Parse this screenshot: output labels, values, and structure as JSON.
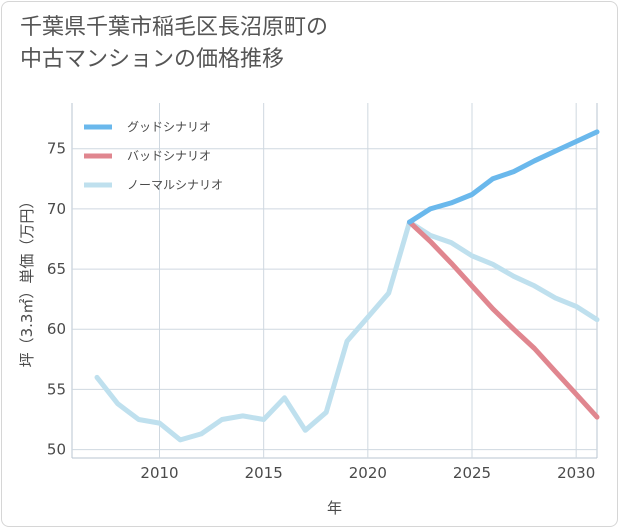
{
  "title_lines": [
    "千葉県千葉市稲毛区長沼原町の",
    "中古マンションの価格推移"
  ],
  "chart_data": {
    "type": "line",
    "xlabel": "年",
    "ylabel": "坪（3.3㎡）単価（万円）",
    "xlim": [
      2005.8,
      2031
    ],
    "ylim": [
      49.3,
      78.8
    ],
    "xticks": [
      2010,
      2015,
      2020,
      2025,
      2030
    ],
    "yticks": [
      50,
      55,
      60,
      65,
      70,
      75
    ],
    "grid": true,
    "legend_position": "top-left",
    "series": [
      {
        "name": "グッドシナリオ",
        "color": "#6ab8ec",
        "x": [
          2022,
          2023,
          2024,
          2025,
          2026,
          2027,
          2028,
          2029,
          2030,
          2031
        ],
        "y": [
          68.9,
          70.0,
          70.5,
          71.2,
          72.5,
          73.1,
          74.0,
          74.8,
          75.6,
          76.4
        ]
      },
      {
        "name": "バッドシナリオ",
        "color": "#e0868f",
        "x": [
          2022,
          2023,
          2024,
          2025,
          2026,
          2027,
          2028,
          2029,
          2030,
          2031
        ],
        "y": [
          68.9,
          67.3,
          65.5,
          63.6,
          61.7,
          60.0,
          58.4,
          56.5,
          54.6,
          52.7
        ]
      },
      {
        "name": "ノーマルシナリオ",
        "color": "#bfe0ee",
        "x": [
          2007,
          2008,
          2009,
          2010,
          2011,
          2012,
          2013,
          2014,
          2015,
          2016,
          2017,
          2018,
          2019,
          2020,
          2021,
          2022,
          2023,
          2024,
          2025,
          2026,
          2027,
          2028,
          2029,
          2030,
          2031
        ],
        "y": [
          56.0,
          53.8,
          52.5,
          52.2,
          50.8,
          51.3,
          52.5,
          52.8,
          52.5,
          54.3,
          51.6,
          53.1,
          59.0,
          61.0,
          63.0,
          68.9,
          67.8,
          67.2,
          66.1,
          65.4,
          64.4,
          63.6,
          62.6,
          61.9,
          60.8
        ]
      }
    ]
  }
}
